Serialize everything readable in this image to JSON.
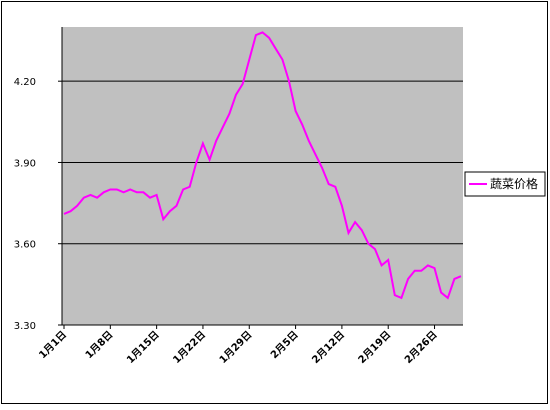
{
  "chart_data": {
    "type": "line",
    "categories": [
      "1月1日",
      null,
      null,
      null,
      null,
      null,
      null,
      "1月8日",
      null,
      null,
      null,
      null,
      null,
      null,
      "1月15日",
      null,
      null,
      null,
      null,
      null,
      null,
      "1月22日",
      null,
      null,
      null,
      null,
      null,
      null,
      "1月29日",
      null,
      null,
      null,
      null,
      null,
      null,
      "2月5日",
      null,
      null,
      null,
      null,
      null,
      null,
      "2月12日",
      null,
      null,
      null,
      null,
      null,
      null,
      "2月19日",
      null,
      null,
      null,
      null,
      null,
      null,
      "2月26日",
      null,
      null,
      null,
      null
    ],
    "series": [
      {
        "name": "蔬菜价格",
        "color": "#ff00ff",
        "values": [
          3.71,
          3.72,
          3.74,
          3.77,
          3.78,
          3.77,
          3.79,
          3.8,
          3.8,
          3.79,
          3.8,
          3.79,
          3.79,
          3.77,
          3.78,
          3.69,
          3.72,
          3.74,
          3.8,
          3.81,
          3.9,
          3.97,
          3.91,
          3.98,
          4.03,
          4.08,
          4.15,
          4.19,
          4.28,
          4.37,
          4.38,
          4.36,
          4.32,
          4.28,
          4.2,
          4.09,
          4.04,
          3.98,
          3.93,
          3.88,
          3.82,
          3.81,
          3.74,
          3.64,
          3.68,
          3.65,
          3.6,
          3.58,
          3.52,
          3.54,
          3.41,
          3.4,
          3.47,
          3.5,
          3.5,
          3.52,
          3.51,
          3.42,
          3.4,
          3.47,
          3.48
        ]
      }
    ],
    "ylim": [
      3.3,
      4.4
    ],
    "yticks": [
      {
        "value": 3.3,
        "label": "3.30"
      },
      {
        "value": 3.6,
        "label": "3.60"
      },
      {
        "value": 3.9,
        "label": "3.90"
      },
      {
        "value": 4.2,
        "label": "4.20"
      }
    ],
    "grid": true,
    "legend": "right"
  }
}
